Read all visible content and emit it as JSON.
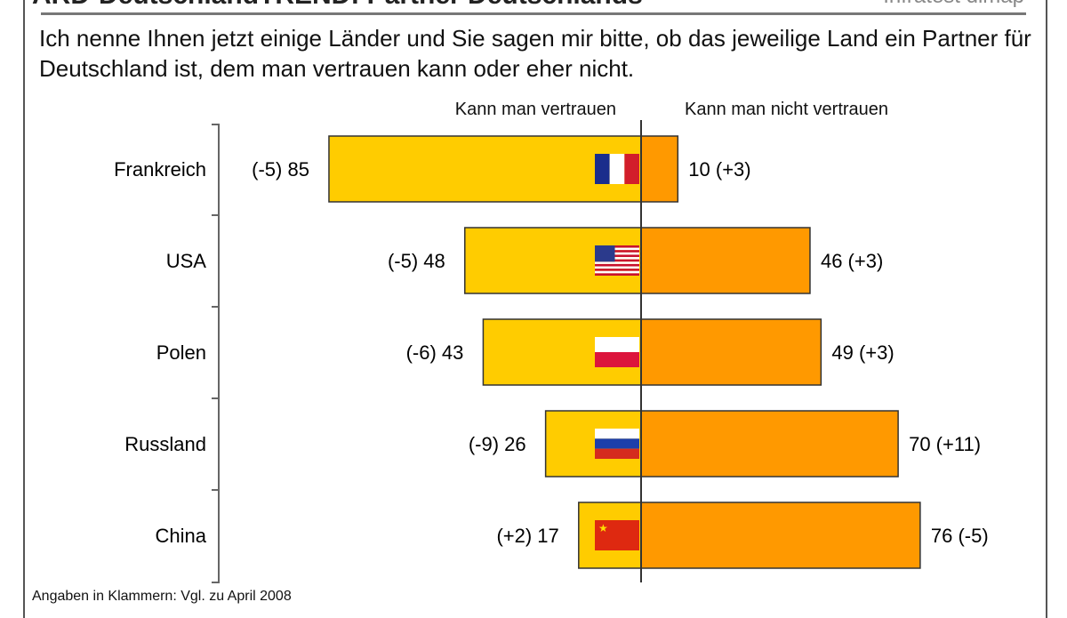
{
  "header": {
    "title": "ARD-DeutschlandTREND: Partner Deutschlands",
    "source": "Infratest dimap"
  },
  "question": "Ich nenne Ihnen jetzt einige Länder und Sie sagen mir bitte, ob das jeweilige Land ein Partner für Deutschland ist, dem man vertrauen kann oder eher nicht.",
  "footnote": "Angaben in Klammern: Vgl. zu April 2008",
  "chart_data": {
    "type": "bar",
    "orientation": "horizontal-diverging",
    "categories": [
      "Frankreich",
      "USA",
      "Polen",
      "Russland",
      "China"
    ],
    "series": [
      {
        "name": "Kann man vertrauen",
        "values": [
          85,
          48,
          43,
          26,
          17
        ],
        "changes": [
          "(-5)",
          "(-5)",
          "(-6)",
          "(-9)",
          "(+2)"
        ],
        "color": "#FFCC00"
      },
      {
        "name": "Kann man nicht vertrauen",
        "values": [
          10,
          46,
          49,
          70,
          76
        ],
        "changes": [
          "(+3)",
          "(+3)",
          "(+3)",
          "(+11)",
          "(-5)"
        ],
        "color": "#FF9900"
      }
    ],
    "flags": [
      "france-flag",
      "usa-flag",
      "poland-flag",
      "russia-flag",
      "china-flag"
    ]
  }
}
